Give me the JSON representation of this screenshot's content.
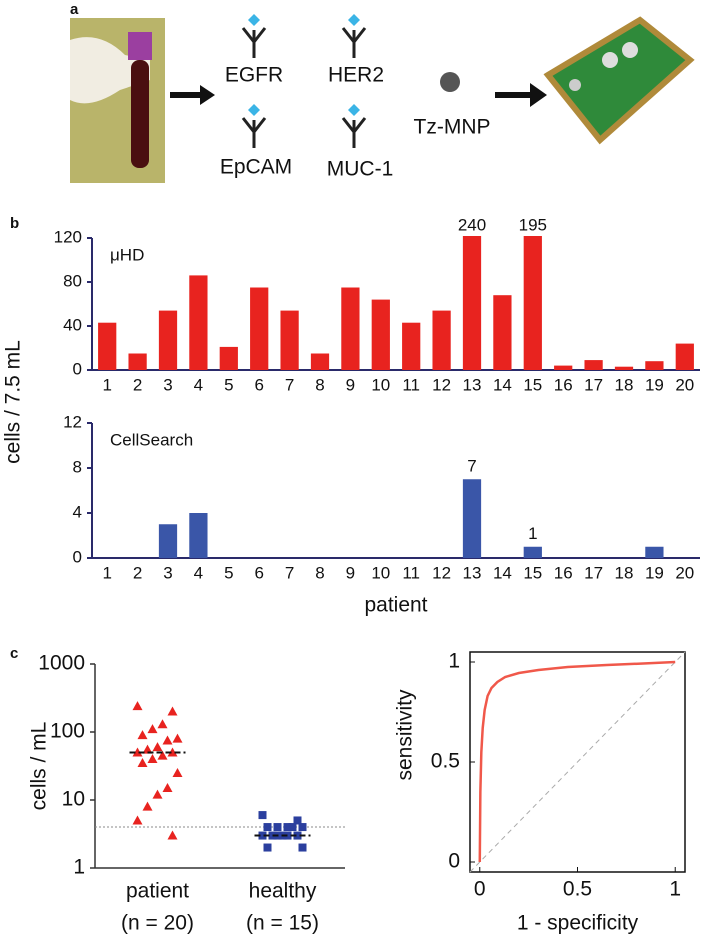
{
  "diagram": {
    "label": "a",
    "antibodies": [
      "EGFR",
      "HER2",
      "EpCAM",
      "MUC-1"
    ],
    "particle": "Tz-MNP"
  },
  "chart_data": [
    {
      "type": "bar",
      "panel": "b",
      "series_label": "μHD",
      "ylabel": "cells / 7.5 mL",
      "color": "#e8231f",
      "categories": [
        "1",
        "2",
        "3",
        "4",
        "5",
        "6",
        "7",
        "8",
        "9",
        "10",
        "11",
        "12",
        "13",
        "14",
        "15",
        "16",
        "17",
        "18",
        "19",
        "20"
      ],
      "values": [
        43,
        15,
        54,
        86,
        21,
        75,
        54,
        15,
        75,
        64,
        43,
        54,
        240,
        68,
        195,
        4,
        9,
        3,
        8,
        24
      ],
      "value_labels": [
        null,
        null,
        null,
        null,
        null,
        null,
        null,
        null,
        null,
        null,
        null,
        null,
        "240",
        null,
        "195",
        null,
        null,
        null,
        null,
        null
      ],
      "ylim": [
        0,
        120
      ],
      "yticks": [
        0,
        40,
        80,
        120
      ]
    },
    {
      "type": "bar",
      "series_label": "CellSearch",
      "xlabel": "patient",
      "color": "#3a56a8",
      "categories": [
        "1",
        "2",
        "3",
        "4",
        "5",
        "6",
        "7",
        "8",
        "9",
        "10",
        "11",
        "12",
        "13",
        "14",
        "15",
        "16",
        "17",
        "18",
        "19",
        "20"
      ],
      "values": [
        0,
        0,
        3,
        4,
        0,
        0,
        0,
        0,
        0,
        0,
        0,
        0,
        7,
        0,
        1,
        0,
        0,
        0,
        1,
        0
      ],
      "value_labels": [
        null,
        null,
        null,
        null,
        null,
        null,
        null,
        null,
        null,
        null,
        null,
        null,
        "7",
        null,
        "1",
        null,
        null,
        null,
        null,
        null
      ],
      "ylim": [
        0,
        12
      ],
      "yticks": [
        0,
        4,
        8,
        12
      ]
    },
    {
      "type": "dot",
      "panel": "c",
      "ylabel": "cells / mL",
      "log_y": true,
      "ylim": [
        1,
        1000
      ],
      "yticks": [
        1,
        10,
        100,
        1000
      ],
      "categories": [
        "patient",
        "healthy"
      ],
      "sublabels": [
        "(n = 20)",
        "(n = 15)"
      ],
      "threshold": 4,
      "groups": [
        {
          "color": "#e8231f",
          "marker": "triangle",
          "median": 50,
          "values": [
            240,
            200,
            130,
            110,
            90,
            80,
            75,
            60,
            55,
            50,
            50,
            45,
            40,
            35,
            25,
            15,
            12,
            8,
            5,
            3
          ]
        },
        {
          "color": "#2b3f9e",
          "marker": "square",
          "median": 3,
          "values": [
            6,
            5,
            4,
            4,
            4,
            4,
            4,
            3,
            3,
            3,
            3,
            3,
            3,
            2,
            2
          ]
        }
      ]
    },
    {
      "type": "line",
      "xlabel": "1 - specificity",
      "ylabel": "sensitivity",
      "color": "#f0584a",
      "xlim": [
        -0.05,
        1.05
      ],
      "ylim": [
        -0.05,
        1.05
      ],
      "xticks": [
        0,
        0.5,
        1
      ],
      "yticks": [
        0,
        0.5,
        1
      ],
      "x": [
        0,
        0.003,
        0.008,
        0.015,
        0.025,
        0.04,
        0.06,
        0.09,
        0.13,
        0.2,
        0.3,
        0.45,
        0.65,
        0.85,
        1
      ],
      "values": [
        0,
        0.35,
        0.55,
        0.67,
        0.76,
        0.83,
        0.87,
        0.9,
        0.925,
        0.945,
        0.96,
        0.975,
        0.985,
        0.993,
        1
      ]
    }
  ]
}
